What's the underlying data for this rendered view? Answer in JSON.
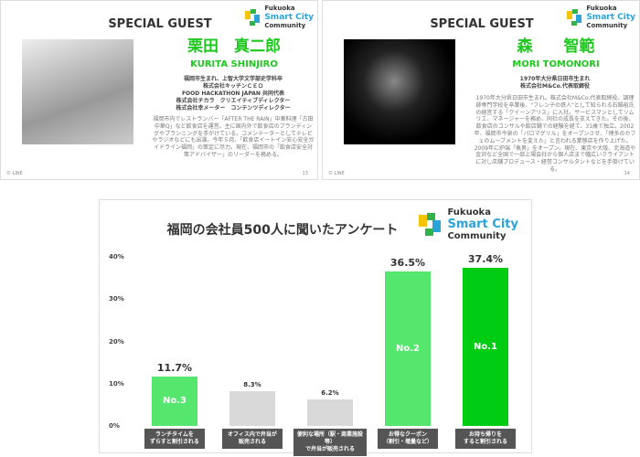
{
  "slides": [
    {
      "title": "SPECIAL GUEST",
      "name_jp": "栗田　真二郎",
      "name_en": "KURITA  SHINJIRO",
      "roles": [
        "福岡市生まれ、上智大学文学部史学科卒",
        "株式会社キッチンＣＥＯ",
        "FOOD HACKATHON JAPAN 共同代表",
        "株式会社チカラ　クリエイティブディレクター",
        "株式会社幸メーター　コンテンツディレクター"
      ],
      "bio": "福岡市内でレストランバー「AFTER THE RAIN」中華料理「古田中華Q」など飲食店を運営。主に国内外で飲食店のブランディングやプランニングを手がけている。コメンテーターとしてテレビやラジオなどにも出演。今年５月、「飲食店イートイン安心安全ガイドライン福岡」の策定に尽力。現在、福岡市の「飲食店安全対策アドバイザー」のリーダーを務める。",
      "footer": "© LINE",
      "page": "13"
    },
    {
      "title": "SPECIAL GUEST",
      "name_jp": "森　　智範",
      "name_en": "MORI  TOMONORI",
      "roles": [
        "1970年大分県日田市生まれ",
        "株式会社M&Co.代表取締役"
      ],
      "bio": "1970年大分県日田市生まれ。株式会社M&Co.代表取締役。調理師専門学校を卒業後、\"フレンチの鉄人\"として知られる石鍋裕氏の経営する「クイーンアリス」に入社。サービスマンとしてソムリエ、マネージャーを務め、同社の成長を支えてきた。その後、飲食店のコンサルや飲店舗での経験を経て、31歳で独立。2002年、福岡市今泉の「パロマグリル」をオープンさせ、「博多のカフェのムーブメントを変えた」と言われる業態店を作り上げた。2009年に炉端「魚男」をオープン。現在、東京や大阪、北海道や金沢など全国で一部上場会社から個人店まで幅広いクライアントに対し店舗プロデュース・経営コンサルタントなどを手掛けている。",
      "footer": "© LINE",
      "page": "14"
    }
  ],
  "logo": {
    "line1": "Fukuoka",
    "line2": "Smart City",
    "line3": "Community",
    "colors": [
      "#f5c400",
      "#2aa3d8",
      "#33b24a"
    ]
  },
  "chart_data": {
    "type": "bar",
    "title": "福岡の会社員500人に聞いたアンケート",
    "categories": [
      "ランチタイムを\nずらすと割引される",
      "オフィス内で弁当が\n販売される",
      "便利な場所（駅・商業施設等）\nで弁当が販売される",
      "お得なクーポン\n（割引・増量など）",
      "お持ち帰りを\nすると割引される"
    ],
    "values": [
      11.7,
      8.3,
      6.2,
      36.5,
      37.4
    ],
    "value_labels": [
      "11.7%",
      "8.3%",
      "6.2%",
      "36.5%",
      "37.4%"
    ],
    "rank_labels": [
      "No.3",
      "",
      "",
      "No.2",
      "No.1"
    ],
    "bar_colors": [
      "#55e66e",
      "#d9d9d9",
      "#d9d9d9",
      "#55e66e",
      "#00cc14"
    ],
    "yticks": [
      "0%",
      "10%",
      "20%",
      "30%",
      "40%"
    ],
    "ylim": [
      0,
      40
    ],
    "grid": false
  }
}
